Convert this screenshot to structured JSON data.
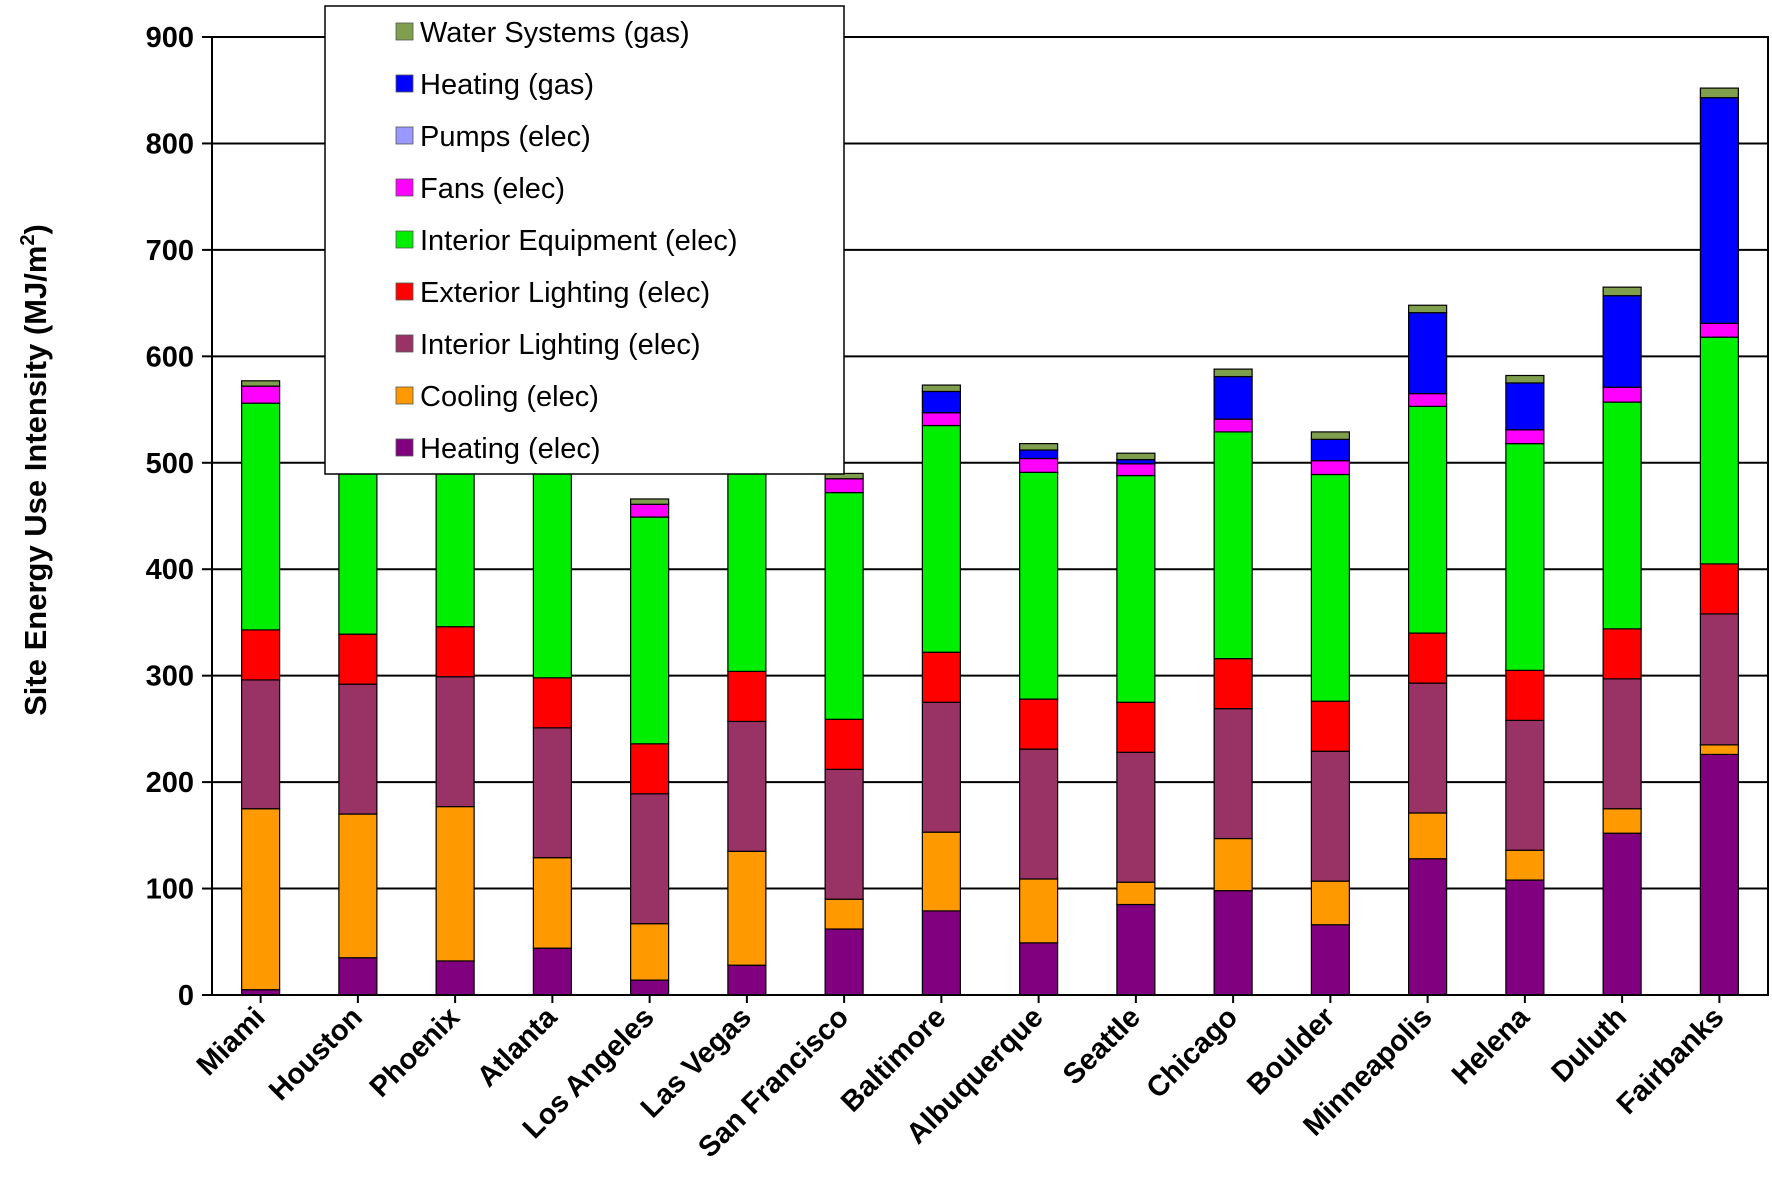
{
  "chart_data": {
    "type": "bar",
    "stacked": true,
    "title": "",
    "xlabel": "",
    "ylabel": "Site Energy Use Intensity (MJ/m²)",
    "ylabel_main": "Site Energy Use Intensity (MJ/m",
    "ylabel_sup": "2",
    "ylabel_end": ")",
    "ylim": [
      0,
      900
    ],
    "yticks": [
      0,
      100,
      200,
      300,
      400,
      500,
      600,
      700,
      800,
      900
    ],
    "grid": true,
    "legend_position": "top-left inside plot",
    "categories": [
      "Miami",
      "Houston",
      "Phoenix",
      "Atlanta",
      "Los Angeles",
      "Las Vegas",
      "San Francisco",
      "Baltimore",
      "Albuquerque",
      "Seattle",
      "Chicago",
      "Boulder",
      "Minneapolis",
      "Helena",
      "Duluth",
      "Fairbanks"
    ],
    "series": [
      {
        "name": "Heating (elec)",
        "color": "#800080",
        "values": [
          5,
          35,
          32,
          44,
          14,
          28,
          62,
          79,
          49,
          85,
          98,
          66,
          128,
          108,
          152,
          226
        ]
      },
      {
        "name": "Cooling (elec)",
        "color": "#FF9900",
        "values": [
          170,
          135,
          145,
          85,
          53,
          107,
          28,
          74,
          60,
          21,
          49,
          41,
          43,
          28,
          23,
          9
        ]
      },
      {
        "name": "Interior Lighting (elec)",
        "color": "#993366",
        "values": [
          121,
          122,
          122,
          122,
          122,
          122,
          122,
          122,
          122,
          122,
          122,
          122,
          122,
          122,
          122,
          123
        ]
      },
      {
        "name": "Exterior Lighting (elec)",
        "color": "#FF0000",
        "values": [
          47,
          47,
          47,
          47,
          47,
          47,
          47,
          47,
          47,
          47,
          47,
          47,
          47,
          47,
          47,
          47
        ]
      },
      {
        "name": "Interior Equipment (elec)",
        "color": "#00EE00",
        "values": [
          213,
          213,
          213,
          213,
          213,
          213,
          213,
          213,
          213,
          213,
          213,
          213,
          213,
          213,
          213,
          213
        ]
      },
      {
        "name": "Fans (elec)",
        "color": "#FF00FF",
        "values": [
          16,
          16,
          16,
          16,
          12,
          16,
          13,
          12,
          13,
          11,
          12,
          13,
          12,
          13,
          14,
          13
        ]
      },
      {
        "name": "Pumps (elec)",
        "color": "#9999FF",
        "values": [
          0,
          0,
          0,
          0,
          0,
          0,
          0,
          0,
          0,
          0,
          0,
          0,
          0,
          0,
          0,
          0
        ]
      },
      {
        "name": "Heating (gas)",
        "color": "#0000FF",
        "values": [
          0,
          0,
          0,
          0,
          0,
          0,
          0,
          20,
          8,
          4,
          40,
          20,
          76,
          44,
          86,
          212
        ]
      },
      {
        "name": "Water Systems (gas)",
        "color": "#7F9F4F",
        "values": [
          5,
          5,
          5,
          5,
          5,
          5,
          5,
          6,
          6,
          6,
          7,
          7,
          7,
          7,
          8,
          9
        ]
      }
    ]
  }
}
